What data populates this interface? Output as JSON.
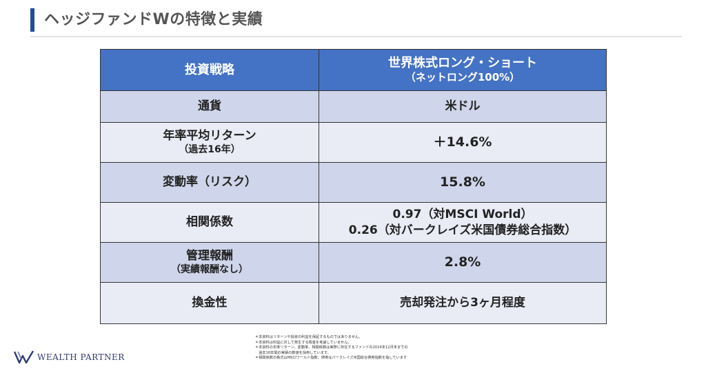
{
  "header": {
    "title": "ヘッジファンドWの特徴と実績"
  },
  "table": {
    "head": {
      "label": "投資戦略",
      "value_line1": "世界株式ロング・ショート",
      "value_line2": "（ネットロング100%）"
    },
    "rows": [
      {
        "label": "通貨",
        "label_sub": "",
        "value_line1": "米ドル",
        "value_line2": ""
      },
      {
        "label": "年率平均リターン",
        "label_sub": "（過去16年）",
        "value_line1": "＋14.6%",
        "value_line2": ""
      },
      {
        "label": "変動率（リスク）",
        "label_sub": "",
        "value_line1": "15.8%",
        "value_line2": ""
      },
      {
        "label": "相関係数",
        "label_sub": "",
        "value_line1": "0.97（対MSCI World）",
        "value_line2": "0.26（対バークレイズ米国債券総合指数）"
      },
      {
        "label": "管理報酬",
        "label_sub": "（実績報酬なし）",
        "value_line1": "2.8%",
        "value_line2": ""
      },
      {
        "label": "換金性",
        "label_sub": "",
        "value_line1": "売却発注から3ヶ月程度",
        "value_line2": ""
      }
    ]
  },
  "footer": {
    "logo_text": "WEALTH PARTNER",
    "notes": [
      "＊本資料はリターンや投資の利益を保証するものではありません。",
      "＊本資料は利益に対して発生する税金を考慮していません。",
      "＊本資料の年率リターン、変動率、相関係数は実際に存在するファンドの2024年12月末までの",
      "　過去16年間の実績の数値を採用しています。",
      "＊相関係数の株式はMSCIワールド指数、債券はバークレイズ米国総合債券指数を指しています"
    ]
  },
  "colors": {
    "accent": "#1f4e9c",
    "header_bg": "#4472c4",
    "row_dark": "#cfd5ea",
    "row_light": "#e9ebf5"
  }
}
